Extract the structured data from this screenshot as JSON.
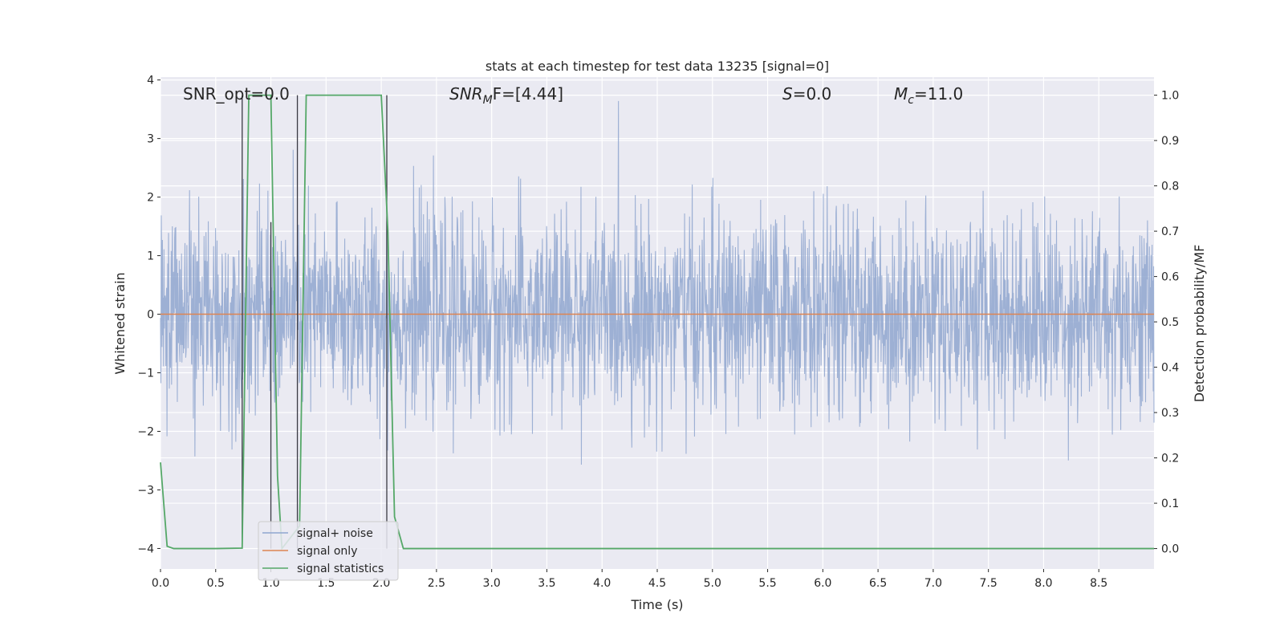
{
  "chart_data": {
    "type": "line",
    "title": "stats at each timestep for test data 13235 [signal=0]",
    "xlabel": "Time (s)",
    "ylabel_left": "Whitened strain",
    "ylabel_right": "Detection probability/MF",
    "xlim": [
      0.0,
      9.0
    ],
    "ylim_left": [
      -4.35,
      4.05
    ],
    "ylim_right": [
      -0.045,
      1.04
    ],
    "x_ticks": [
      "0.0",
      "0.5",
      "1.0",
      "1.5",
      "2.0",
      "2.5",
      "3.0",
      "3.5",
      "4.0",
      "4.5",
      "5.0",
      "5.5",
      "6.0",
      "6.5",
      "7.0",
      "7.5",
      "8.0",
      "8.5"
    ],
    "x_tick_values": [
      0.0,
      0.5,
      1.0,
      1.5,
      2.0,
      2.5,
      3.0,
      3.5,
      4.0,
      4.5,
      5.0,
      5.5,
      6.0,
      6.5,
      7.0,
      7.5,
      8.0,
      8.5
    ],
    "y_ticks_left": [
      "−4",
      "−3",
      "−2",
      "−1",
      "0",
      "1",
      "2",
      "3",
      "4"
    ],
    "y_tick_values_left": [
      -4,
      -3,
      -2,
      -1,
      0,
      1,
      2,
      3,
      4
    ],
    "y_ticks_right": [
      "0.0",
      "0.1",
      "0.2",
      "0.3",
      "0.4",
      "0.5",
      "0.6",
      "0.7",
      "0.8",
      "0.9",
      "1.0"
    ],
    "y_tick_values_right": [
      0.0,
      0.1,
      0.2,
      0.3,
      0.4,
      0.5,
      0.6,
      0.7,
      0.8,
      0.9,
      1.0
    ],
    "grid": true,
    "legend_position": "lower-left",
    "annotations": {
      "snr_opt": "SNR_opt=0.0",
      "snr_mf_base": "SNR",
      "snr_mf_sub": "M",
      "snr_mf_rest": "F=[4.44]",
      "s_sym": "S",
      "s_val": "=0.0",
      "mc_base": "M",
      "mc_sub": "c",
      "mc_val": "=11.0"
    },
    "series": [
      {
        "name": "signal+ noise",
        "axis": "left",
        "color": "#8fa6cf",
        "kind": "noise",
        "sigma": 0.85,
        "duration": 9.0
      },
      {
        "name": "signal only",
        "axis": "left",
        "color": "#dd8452",
        "x": [
          0.0,
          9.0
        ],
        "y": [
          0.0,
          0.0
        ]
      },
      {
        "name": "signal statistics",
        "axis": "right",
        "color": "#55a868",
        "x": [
          0.0,
          0.06,
          0.12,
          0.2,
          0.5,
          0.74,
          0.8,
          0.86,
          1.0,
          1.06,
          1.1,
          1.26,
          1.32,
          1.5,
          2.0,
          2.06,
          2.12,
          2.2,
          9.0
        ],
        "y": [
          0.19,
          0.005,
          0.0,
          0.0,
          0.0,
          0.001,
          1.0,
          1.0,
          1.0,
          0.16,
          0.0,
          0.05,
          1.0,
          1.0,
          1.0,
          0.7,
          0.07,
          0.0,
          0.0
        ]
      }
    ],
    "black_spikes": [
      {
        "x": 0.74,
        "y_top": 1.0,
        "y_bottom": 0.0
      },
      {
        "x": 1.0,
        "y_top": 0.72,
        "y_bottom": 0.0
      },
      {
        "x": 1.24,
        "y_top": 1.0,
        "y_bottom": 0.0
      },
      {
        "x": 2.05,
        "y_top": 1.0,
        "y_bottom": 0.0
      }
    ]
  }
}
